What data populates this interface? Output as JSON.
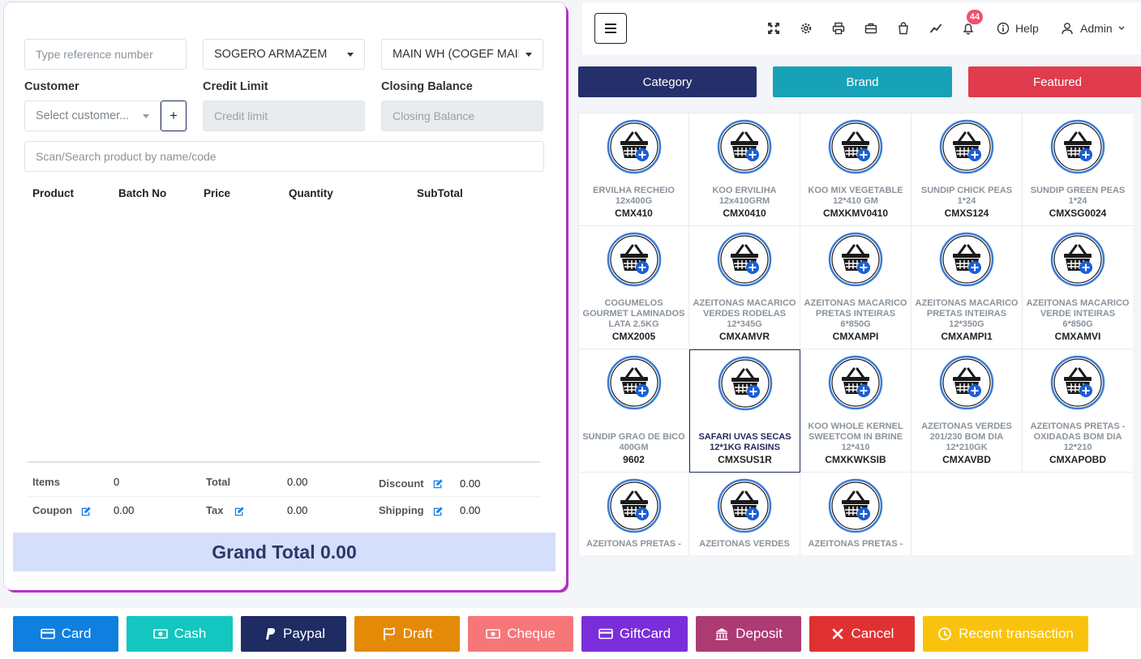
{
  "left": {
    "reference_placeholder": "Type reference number",
    "warehouse_from": "SOGERO ARMAZEM",
    "warehouse_to": "MAIN WH (COGEF MAIN",
    "customer_label": "Customer",
    "credit_limit_label": "Credit Limit",
    "closing_balance_label": "Closing Balance",
    "customer_placeholder": "Select customer...",
    "add_customer_label": "+",
    "credit_limit_placeholder": "Credit limit",
    "closing_balance_placeholder": "Closing Balance",
    "search_placeholder": "Scan/Search product by name/code",
    "table_headers": [
      "Product",
      "Batch No",
      "Price",
      "Quantity",
      "SubTotal"
    ],
    "summary": {
      "items_label": "Items",
      "items_value": "0",
      "total_label": "Total",
      "total_value": "0.00",
      "discount_label": "Discount",
      "discount_value": "0.00",
      "coupon_label": "Coupon",
      "coupon_value": "0.00",
      "tax_label": "Tax",
      "tax_value": "0.00",
      "shipping_label": "Shipping",
      "shipping_value": "0.00"
    },
    "grand_total": "Grand Total 0.00"
  },
  "topbar": {
    "notification_count": "44",
    "help_label": "Help",
    "user_label": "Admin"
  },
  "tabs": [
    {
      "label": "Category",
      "color": "#252f6b"
    },
    {
      "label": "Brand",
      "color": "#17a2b8"
    },
    {
      "label": "Featured",
      "color": "#e03c4d"
    }
  ],
  "products": [
    {
      "name": "ERVILHA RECHEIO 12x400G",
      "code": "CMX410"
    },
    {
      "name": "KOO ERVILIHA 12x410GRM",
      "code": "CMX0410"
    },
    {
      "name": "KOO MIX VEGETABLE 12*410 GM",
      "code": "CMXKMV0410"
    },
    {
      "name": "SUNDIP CHICK PEAS 1*24",
      "code": "CMXS124"
    },
    {
      "name": "SUNDIP GREEN PEAS 1*24",
      "code": "CMXSG0024"
    },
    {
      "name": "COGUMELOS GOURMET LAMINADOS LATA 2.5KG",
      "code": "CMX2005"
    },
    {
      "name": "AZEITONAS MACARICO VERDES RODELAS 12*345G",
      "code": "CMXAMVR"
    },
    {
      "name": "AZEITONAS MACARICO PRETAS INTEIRAS 6*850G",
      "code": "CMXAMPI"
    },
    {
      "name": "AZEITONAS MACARICO PRETAS INTEIRAS 12*350G",
      "code": "CMXAMPI1"
    },
    {
      "name": "AZEITONAS MACARICO VERDE INTEIRAS 6*850G",
      "code": "CMXAMVI"
    },
    {
      "name": "SUNDIP GRAO DE BICO 400GM",
      "code": "9602"
    },
    {
      "name": "SAFARI UVAS SECAS 12*1KG RAISINS",
      "code": "CMXSUS1R",
      "selected": true
    },
    {
      "name": "KOO WHOLE KERNEL SWEETCOM IN BRINE 12*410",
      "code": "CMXKWKSIB"
    },
    {
      "name": "AZEITONAS VERDES 201/230 BOM DIA 12*210GK",
      "code": "CMXAVBD"
    },
    {
      "name": "AZEITONAS PRETAS - OXIDADAS BOM DIA 12*210",
      "code": "CMXAPOBD"
    },
    {
      "name": "AZEITONAS PRETAS -",
      "code": ""
    },
    {
      "name": "AZEITONAS VERDES",
      "code": ""
    },
    {
      "name": "AZEITONAS PRETAS -",
      "code": ""
    }
  ],
  "payments": [
    {
      "label": "Card",
      "color": "#0f7fe0",
      "icon": "credit-card-icon"
    },
    {
      "label": "Cash",
      "color": "#14c6c0",
      "icon": "money-icon"
    },
    {
      "label": "Paypal",
      "color": "#1f2c63",
      "icon": "paypal-icon"
    },
    {
      "label": "Draft",
      "color": "#e48a07",
      "icon": "flag-icon"
    },
    {
      "label": "Cheque",
      "color": "#f77679",
      "icon": "money-icon"
    },
    {
      "label": "GiftCard",
      "color": "#7a2ed9",
      "icon": "credit-card-icon"
    },
    {
      "label": "Deposit",
      "color": "#ad3b73",
      "icon": "bank-icon"
    },
    {
      "label": "Cancel",
      "color": "#e03131",
      "icon": "close-icon"
    },
    {
      "label": "Recent transaction",
      "color": "#f9c30d",
      "icon": "clock-icon"
    }
  ]
}
